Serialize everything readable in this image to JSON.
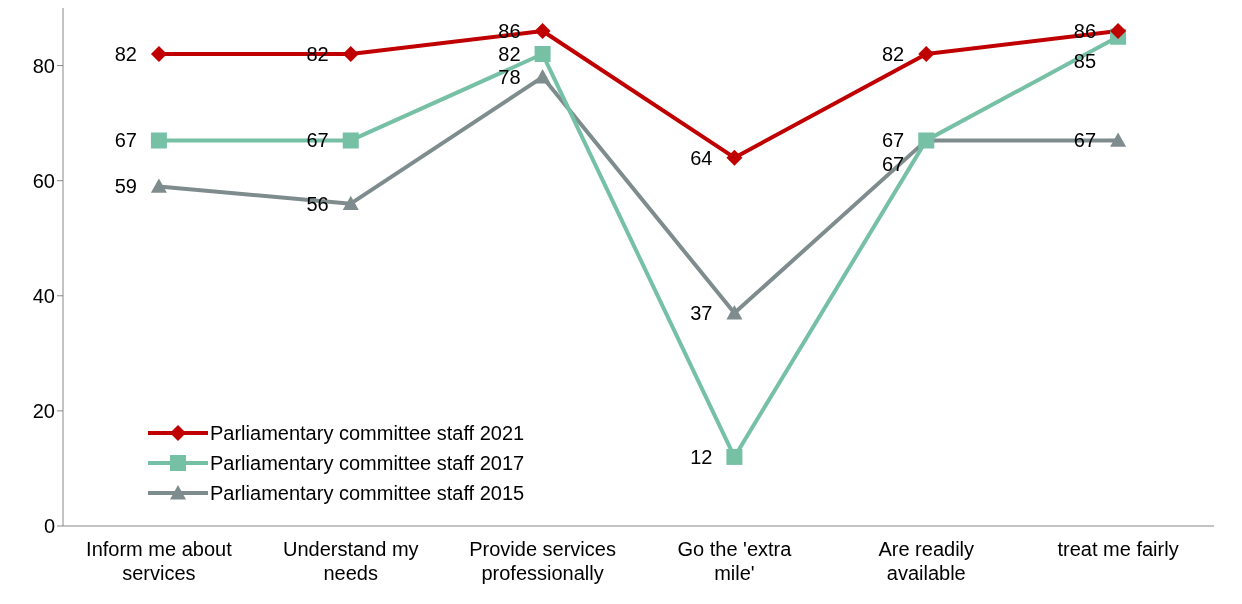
{
  "chart_data": {
    "type": "line",
    "categories": [
      "Inform me about services",
      "Understand my needs",
      "Provide services professionally",
      "Go the 'extra mile'",
      "Are readily available",
      "treat me fairly"
    ],
    "series": [
      {
        "name": "Parliamentary committee staff 2021",
        "color": "#c00000",
        "marker": "diamond",
        "values": [
          82,
          82,
          86,
          64,
          82,
          86
        ]
      },
      {
        "name": "Parliamentary committee staff 2017",
        "color": "#76c0a6",
        "marker": "square",
        "values": [
          67,
          67,
          82,
          12,
          67,
          85
        ]
      },
      {
        "name": "Parliamentary committee staff 2015",
        "color": "#7f8c8d",
        "marker": "triangle",
        "values": [
          59,
          56,
          78,
          37,
          67,
          67
        ]
      }
    ],
    "ylim": [
      0,
      90
    ],
    "yticks": [
      0,
      20,
      40,
      60,
      80
    ],
    "grid": false,
    "legend": "bottom left",
    "data_labels": true,
    "line_style": "solid"
  }
}
